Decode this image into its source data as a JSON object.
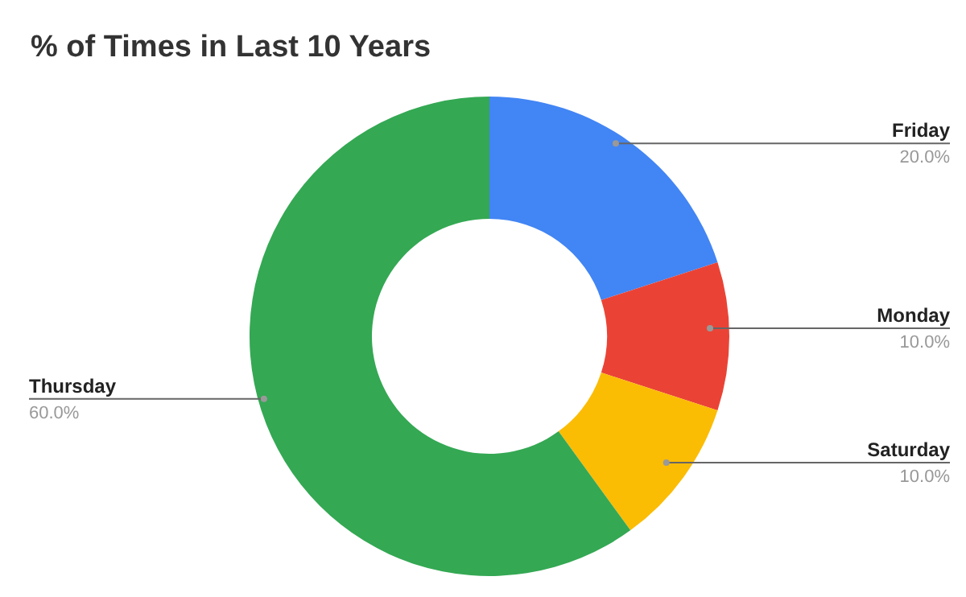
{
  "chart_data": {
    "type": "donut",
    "title": "% of Times in Last 10 Years",
    "categories": [
      "Friday",
      "Monday",
      "Saturday",
      "Thursday"
    ],
    "values": [
      20,
      10,
      10,
      60
    ],
    "colors": [
      "#4285f4",
      "#ea4335",
      "#fbbc04",
      "#34a853"
    ],
    "value_labels": [
      "20.0%",
      "10.0%",
      "10.0%",
      "60.0%"
    ],
    "legend": false
  }
}
